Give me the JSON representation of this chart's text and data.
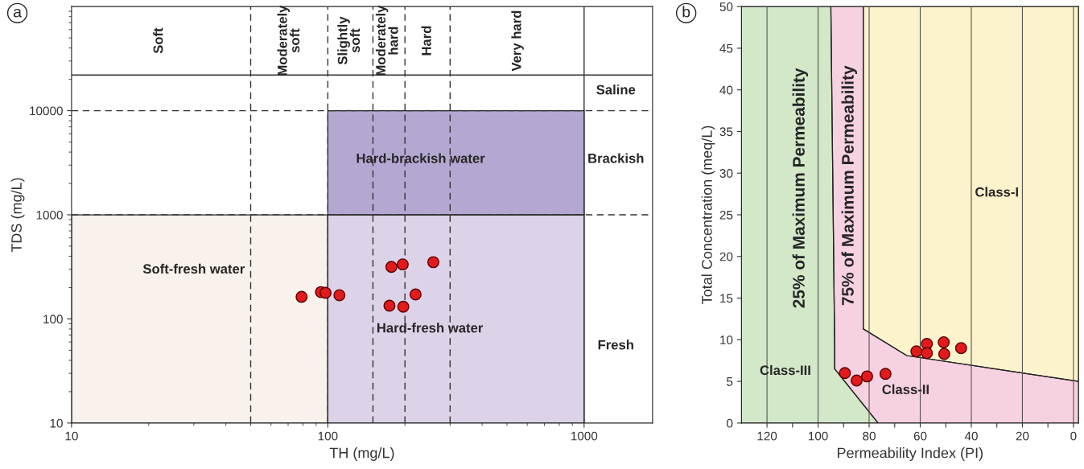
{
  "chart_data": [
    {
      "type": "scatter",
      "title": "a",
      "xlabel": "TH (mg/L)",
      "ylabel": "TDS (mg/L)",
      "log": "xy",
      "grid": false,
      "xlim": [
        10,
        1850
      ],
      "ylim": [
        10,
        100000
      ],
      "xticks": [
        10,
        100,
        1000
      ],
      "yticks": [
        10,
        100,
        1000,
        10000
      ],
      "series": [
        {
          "type": "area",
          "color": "#f8f1ec",
          "x": [
            10,
            100,
            100,
            10
          ],
          "values": [
            10,
            10,
            1000,
            1000
          ]
        },
        {
          "type": "area",
          "color": "#ddd3e8",
          "x": [
            100,
            1000,
            1000,
            100
          ],
          "values": [
            10,
            10,
            1000,
            1000
          ]
        },
        {
          "type": "area",
          "color": "#b4a7d2",
          "x": [
            100,
            1000,
            1000,
            100
          ],
          "values": [
            1000,
            1000,
            10000,
            10000
          ]
        },
        {
          "color": "#e31a1c",
          "x": [
            79,
            94,
            98,
            111,
            174,
            197,
            177,
            196,
            220,
            258
          ],
          "values": [
            163,
            181,
            178,
            169,
            134,
            131,
            316,
            334,
            172,
            351
          ]
        }
      ],
      "ref_lines": [
        {
          "axis": "x",
          "value": 50,
          "line_style": "dashed"
        },
        {
          "axis": "x",
          "value": 100,
          "line_style": "dashed"
        },
        {
          "axis": "x",
          "value": 150,
          "line_style": "dashed"
        },
        {
          "axis": "x",
          "value": 200,
          "line_style": "dashed"
        },
        {
          "axis": "x",
          "value": 300,
          "line_style": "dashed"
        },
        {
          "axis": "x",
          "value": 1000,
          "line_style": "solid"
        },
        {
          "axis": "y",
          "value": 1000,
          "line_style": "dashed"
        },
        {
          "axis": "y",
          "value": 10000,
          "line_style": "dashed"
        },
        {
          "axis": "y",
          "value": 22000,
          "line_style": "solid"
        }
      ],
      "annotations": [
        "Soft",
        "Moderately\nsoft",
        "Slightly\nsoft",
        "Moderately\nhard",
        "Hard",
        "Very hard",
        "Saline",
        "Brackish",
        "Fresh",
        "Soft-fresh water",
        "Hard-brackish water",
        "Hard-fresh water"
      ]
    },
    {
      "type": "scatter",
      "title": "b",
      "xlabel": "Permeability Index (PI)",
      "ylabel": "Total Concentration (meq/L)",
      "grid": "x",
      "xlim": [
        130,
        -2
      ],
      "ylim": [
        0,
        50
      ],
      "xticks": [
        120,
        {
          "value": 110,
          "label": null
        },
        100,
        {
          "value": 90,
          "label": null
        },
        80,
        {
          "value": 70,
          "label": null
        },
        60,
        {
          "value": 50,
          "label": null
        },
        40,
        {
          "value": 30,
          "label": null
        },
        20,
        {
          "value": 10,
          "label": null
        },
        0
      ],
      "yticks": [
        0,
        5,
        10,
        15,
        20,
        25,
        30,
        35,
        40,
        45,
        50
      ],
      "series": [
        {
          "type": "area",
          "color": "#d3e8c8",
          "x": [
            130,
            130,
            95,
            93.5,
            93.5,
            76.5
          ],
          "values": [
            0,
            50,
            50,
            9,
            6.5,
            0
          ]
        },
        {
          "type": "area",
          "color": "#f6d1e1",
          "x": [
            95,
            82.3,
            82.3,
            65.3,
            -2,
            -2,
            76.5,
            93.5,
            93.5
          ],
          "values": [
            50,
            50,
            11.3,
            8.1,
            5,
            0,
            0,
            6.5,
            9
          ]
        },
        {
          "type": "area",
          "color": "#fcf3cc",
          "x": [
            82.3,
            -2,
            -2,
            65.3,
            82.3
          ],
          "values": [
            50,
            50,
            5,
            8.1,
            11.3
          ]
        },
        {
          "color": "#e31a1c",
          "x": [
            89.5,
            84.9,
            80.8,
            73.6,
            61.5,
            57.4,
            57.4,
            50.8,
            50.6,
            44.0
          ],
          "values": [
            6.0,
            5.1,
            5.6,
            5.9,
            8.6,
            9.5,
            8.4,
            9.7,
            8.3,
            9.0
          ]
        }
      ],
      "annotations": [
        "Class-I",
        "Class-II",
        "Class-III",
        "25% of Maximum Permeability",
        "75% of Maximum Permeability"
      ]
    }
  ]
}
